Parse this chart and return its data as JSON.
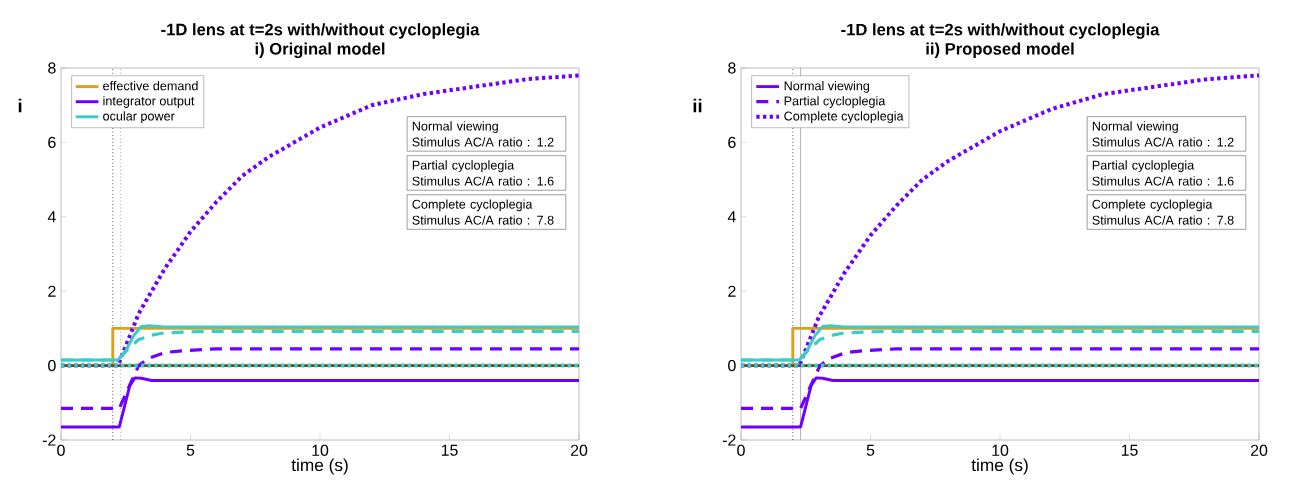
{
  "chart_data": [
    {
      "type": "line",
      "title": "-1D lens at t=2s with/without cycloplegia",
      "subtitle": "i) Original model",
      "xlabel": "time (s)",
      "xlim": [
        0,
        20
      ],
      "ylim": [
        -2,
        8
      ],
      "xticks": [
        0,
        5,
        10,
        15,
        20
      ],
      "yticks": [
        -2,
        0,
        2,
        4,
        6,
        8
      ],
      "legend": "top left",
      "annotations": [
        "i",
        "Normal viewing",
        "Stimulus AC/A ratio : 1.2",
        "Partial cycloplegia",
        "Stimulus AC/A ratio : 1.6",
        "Complete cycloplegia",
        "Stimulus AC/A ratio : 7.8"
      ],
      "ref_lines": [
        {
          "axis": "x",
          "value": 2,
          "color": "#000000",
          "line_style": "dotted"
        },
        {
          "axis": "x",
          "value": 2.3,
          "color": "#808080",
          "line_style": "dotted"
        }
      ],
      "series": [
        {
          "name": "effective demand",
          "color": "#d9a21b",
          "line_style": "solid",
          "x": [
            0,
            2,
            2,
            20
          ],
          "values": [
            0,
            0,
            1,
            1
          ]
        },
        {
          "color": "#5e4b1a",
          "line_style": "solid",
          "x": [
            0,
            20
          ],
          "values": [
            0,
            0
          ]
        },
        {
          "name": "integrator output",
          "color": "#6f00ff",
          "line_style": "solid",
          "x": [
            0,
            2.25,
            2.45,
            2.65,
            2.85,
            3.1,
            3.5,
            20
          ],
          "values": [
            -1.65,
            -1.65,
            -1.1,
            -0.55,
            -0.33,
            -0.34,
            -0.4,
            -0.4
          ]
        },
        {
          "color": "#6f00ff",
          "line_style": "dashed",
          "x": [
            0,
            2.25,
            2.7,
            3.0,
            3.4,
            4.0,
            4.7,
            6,
            20
          ],
          "values": [
            -1.15,
            -1.15,
            -0.45,
            0,
            0.2,
            0.35,
            0.4,
            0.45,
            0.45
          ]
        },
        {
          "color": "#6f00ff",
          "line_style": "dotted",
          "x": [
            0,
            2.2,
            3,
            4,
            5,
            6,
            7,
            8,
            10,
            12,
            14,
            16,
            18,
            20
          ],
          "values": [
            0,
            0,
            1.4,
            2.6,
            3.6,
            4.4,
            5.1,
            5.6,
            6.4,
            7.0,
            7.3,
            7.5,
            7.7,
            7.8
          ]
        },
        {
          "name": "ocular power",
          "color": "#3ccbc6",
          "line_style": "solid",
          "x": [
            0,
            2.2,
            2.5,
            2.8,
            3.1,
            3.4,
            4,
            20
          ],
          "values": [
            0.15,
            0.15,
            0.4,
            0.8,
            1.05,
            1.07,
            1.04,
            1.04
          ]
        },
        {
          "color": "#3ccbc6",
          "line_style": "dashed",
          "x": [
            0,
            2.2,
            2.6,
            3.0,
            3.5,
            4,
            5,
            6,
            20
          ],
          "values": [
            0.15,
            0.15,
            0.45,
            0.7,
            0.82,
            0.88,
            0.91,
            0.92,
            0.92
          ]
        },
        {
          "color": "#3ccbc6",
          "line_style": "dotted",
          "x": [
            0,
            20
          ],
          "values": [
            0,
            0
          ]
        }
      ]
    },
    {
      "type": "line",
      "title": "-1D lens at t=2s with/without cycloplegia",
      "subtitle": "ii) Proposed model",
      "xlabel": "time (s)",
      "xlim": [
        0,
        20
      ],
      "ylim": [
        -2,
        8
      ],
      "xticks": [
        0,
        5,
        10,
        15,
        20
      ],
      "yticks": [
        -2,
        0,
        2,
        4,
        6,
        8
      ],
      "legend": "top left",
      "annotations": [
        "ii",
        "Normal viewing",
        "Stimulus AC/A ratio : 1.2",
        "Partial cycloplegia",
        "Stimulus AC/A ratio : 1.6",
        "Complete cycloplegia",
        "Stimulus AC/A ratio : 7.8"
      ],
      "ref_lines": [
        {
          "axis": "x",
          "value": 2,
          "color": "#000000",
          "line_style": "dotted"
        },
        {
          "axis": "x",
          "value": 2.3,
          "color": "#a0a0a0",
          "line_style": "solid"
        }
      ],
      "series": [
        {
          "color": "#d9a21b",
          "line_style": "solid",
          "x": [
            0,
            2,
            2,
            20
          ],
          "values": [
            0,
            0,
            1,
            1
          ]
        },
        {
          "color": "#5e4b1a",
          "line_style": "solid",
          "x": [
            0,
            20
          ],
          "values": [
            0,
            0
          ]
        },
        {
          "name": "Normal viewing",
          "color": "#6f00ff",
          "line_style": "solid",
          "x": [
            0,
            2.3,
            2.5,
            2.7,
            2.9,
            3.15,
            3.55,
            20
          ],
          "values": [
            -1.65,
            -1.65,
            -1.1,
            -0.55,
            -0.33,
            -0.34,
            -0.4,
            -0.4
          ]
        },
        {
          "name": "Partial cycloplegia",
          "color": "#6f00ff",
          "line_style": "dashed",
          "x": [
            0,
            2.3,
            2.75,
            3.05,
            3.45,
            4.05,
            4.75,
            6,
            20
          ],
          "values": [
            -1.15,
            -1.15,
            -0.45,
            0,
            0.2,
            0.35,
            0.4,
            0.45,
            0.45
          ]
        },
        {
          "name": "Complete cycloplegia",
          "color": "#6f00ff",
          "line_style": "dotted",
          "x": [
            0,
            2.25,
            3,
            4,
            5,
            6,
            7,
            8,
            10,
            12,
            14,
            16,
            18,
            20
          ],
          "values": [
            0,
            0,
            1.3,
            2.5,
            3.5,
            4.3,
            5.0,
            5.5,
            6.3,
            6.9,
            7.3,
            7.5,
            7.7,
            7.8
          ]
        },
        {
          "color": "#3ccbc6",
          "line_style": "solid",
          "x": [
            0,
            2.25,
            2.55,
            2.85,
            3.15,
            3.45,
            4,
            20
          ],
          "values": [
            0.15,
            0.15,
            0.4,
            0.8,
            1.05,
            1.07,
            1.04,
            1.04
          ]
        },
        {
          "color": "#3ccbc6",
          "line_style": "dashed",
          "x": [
            0,
            2.25,
            2.65,
            3.05,
            3.55,
            4,
            5,
            6,
            20
          ],
          "values": [
            0.15,
            0.15,
            0.45,
            0.7,
            0.82,
            0.88,
            0.91,
            0.92,
            0.92
          ]
        },
        {
          "color": "#3ccbc6",
          "line_style": "dotted",
          "x": [
            0,
            20
          ],
          "values": [
            0,
            0
          ]
        }
      ]
    }
  ]
}
